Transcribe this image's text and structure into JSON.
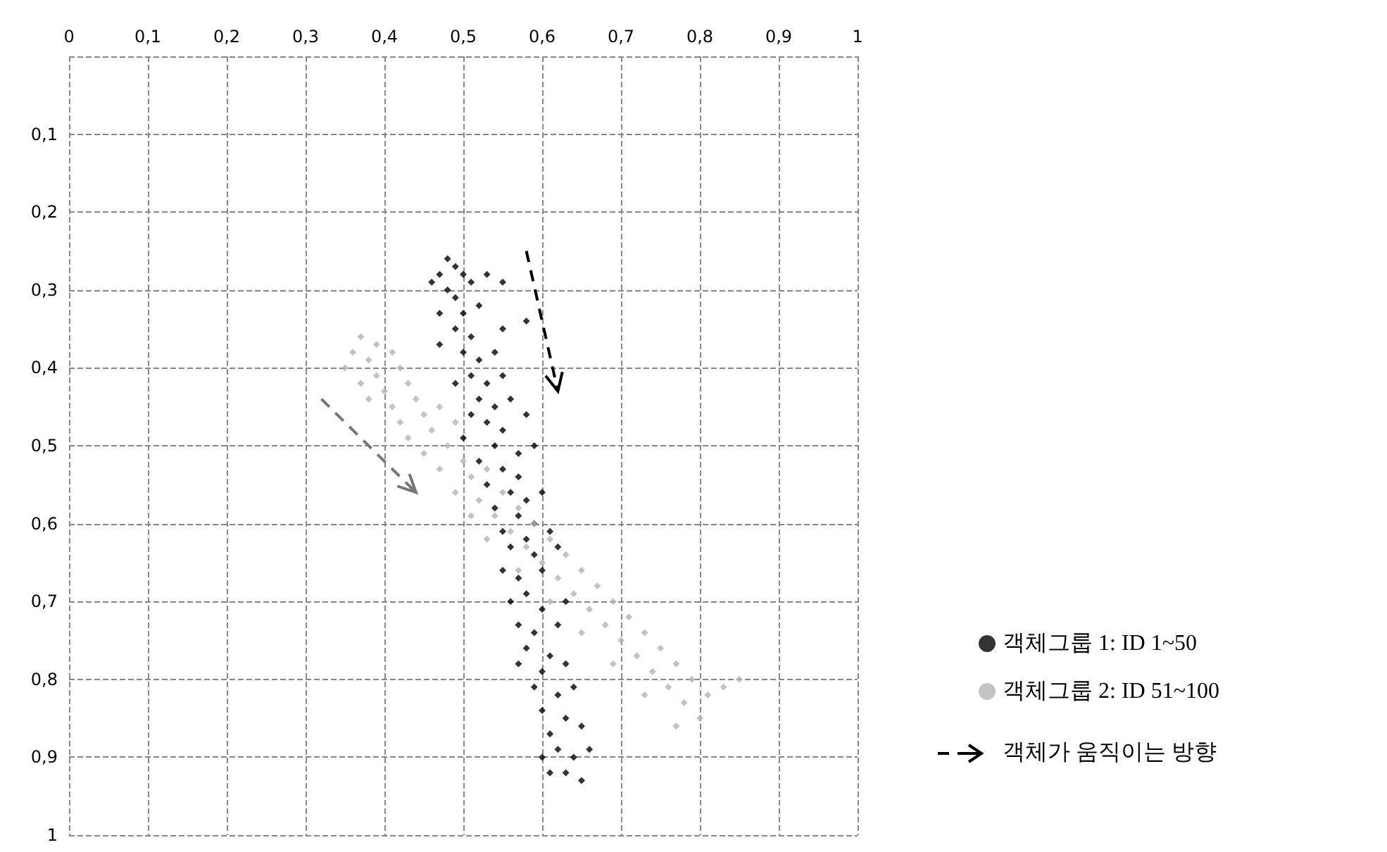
{
  "chart_data": {
    "type": "scatter",
    "marker": "diamond",
    "grid": true,
    "legend": "right",
    "xlim": [
      0,
      1
    ],
    "ylim": [
      1,
      0
    ],
    "xticks": [
      {
        "value": 0,
        "label": "0"
      },
      {
        "value": 0.1,
        "label": "0,1"
      },
      {
        "value": 0.2,
        "label": "0,2"
      },
      {
        "value": 0.3,
        "label": "0,3"
      },
      {
        "value": 0.4,
        "label": "0,4"
      },
      {
        "value": 0.5,
        "label": "0,5"
      },
      {
        "value": 0.6,
        "label": "0,6"
      },
      {
        "value": 0.7,
        "label": "0,7"
      },
      {
        "value": 0.8,
        "label": "0,8"
      },
      {
        "value": 0.9,
        "label": "0,9"
      },
      1
    ],
    "yticks": [
      {
        "value": 0,
        "label": null
      },
      {
        "value": 0.1,
        "label": "0,1"
      },
      {
        "value": 0.2,
        "label": "0,2"
      },
      {
        "value": 0.3,
        "label": "0,3"
      },
      {
        "value": 0.4,
        "label": "0,4"
      },
      {
        "value": 0.5,
        "label": "0,5"
      },
      {
        "value": 0.6,
        "label": "0,6"
      },
      {
        "value": 0.7,
        "label": "0,7"
      },
      {
        "value": 0.8,
        "label": "0,8"
      },
      {
        "value": 0.9,
        "label": "0,9"
      },
      1
    ],
    "annotations": [
      "객체가 움직이는 방향"
    ],
    "series": [
      {
        "name": "객체그룹 1: ID 1~50",
        "color": "#000000",
        "x": [
          0.48,
          0.49,
          0.47,
          0.5,
          0.48,
          0.51,
          0.49,
          0.46,
          0.53,
          0.55,
          0.47,
          0.5,
          0.52,
          0.49,
          0.51,
          0.55,
          0.58,
          0.47,
          0.5,
          0.52,
          0.54,
          0.51,
          0.53,
          0.49,
          0.55,
          0.52,
          0.54,
          0.56,
          0.51,
          0.53,
          0.55,
          0.58,
          0.5,
          0.54,
          0.57,
          0.59,
          0.52,
          0.55,
          0.57,
          0.53,
          0.56,
          0.58,
          0.6,
          0.54,
          0.57,
          0.59,
          0.55,
          0.58,
          0.61,
          0.56,
          0.59,
          0.62,
          0.55,
          0.57,
          0.6,
          0.58,
          0.56,
          0.6,
          0.63,
          0.57,
          0.59,
          0.62,
          0.58,
          0.61,
          0.6,
          0.63,
          0.57,
          0.59,
          0.62,
          0.64,
          0.6,
          0.63,
          0.61,
          0.65,
          0.62,
          0.64,
          0.6,
          0.66,
          0.63,
          0.65,
          0.61
        ],
        "values": [
          0.26,
          0.27,
          0.28,
          0.28,
          0.3,
          0.29,
          0.31,
          0.29,
          0.28,
          0.29,
          0.33,
          0.33,
          0.32,
          0.35,
          0.36,
          0.35,
          0.34,
          0.37,
          0.38,
          0.39,
          0.38,
          0.41,
          0.42,
          0.42,
          0.41,
          0.44,
          0.45,
          0.44,
          0.46,
          0.47,
          0.48,
          0.46,
          0.49,
          0.5,
          0.51,
          0.5,
          0.52,
          0.53,
          0.54,
          0.55,
          0.56,
          0.57,
          0.56,
          0.58,
          0.59,
          0.6,
          0.61,
          0.62,
          0.61,
          0.63,
          0.64,
          0.63,
          0.66,
          0.67,
          0.66,
          0.69,
          0.7,
          0.71,
          0.7,
          0.73,
          0.74,
          0.73,
          0.76,
          0.77,
          0.79,
          0.78,
          0.78,
          0.81,
          0.82,
          0.81,
          0.84,
          0.85,
          0.87,
          0.86,
          0.89,
          0.9,
          0.9,
          0.89,
          0.92,
          0.93,
          0.92
        ]
      },
      {
        "name": "객체그룹 2: ID 51~100",
        "color": "#b4b4b4",
        "x": [
          0.37,
          0.39,
          0.36,
          0.38,
          0.41,
          0.35,
          0.39,
          0.42,
          0.37,
          0.4,
          0.43,
          0.41,
          0.44,
          0.38,
          0.42,
          0.45,
          0.47,
          0.43,
          0.46,
          0.49,
          0.45,
          0.48,
          0.5,
          0.47,
          0.51,
          0.53,
          0.49,
          0.52,
          0.55,
          0.51,
          0.54,
          0.57,
          0.56,
          0.59,
          0.53,
          0.58,
          0.61,
          0.6,
          0.63,
          0.57,
          0.62,
          0.65,
          0.64,
          0.67,
          0.61,
          0.66,
          0.69,
          0.68,
          0.71,
          0.65,
          0.7,
          0.73,
          0.72,
          0.75,
          0.69,
          0.74,
          0.77,
          0.76,
          0.79,
          0.73,
          0.78,
          0.81,
          0.8,
          0.83,
          0.77,
          0.85
        ],
        "values": [
          0.36,
          0.37,
          0.38,
          0.39,
          0.38,
          0.4,
          0.41,
          0.4,
          0.42,
          0.43,
          0.42,
          0.45,
          0.44,
          0.44,
          0.47,
          0.46,
          0.45,
          0.49,
          0.48,
          0.47,
          0.51,
          0.5,
          0.52,
          0.53,
          0.54,
          0.53,
          0.56,
          0.57,
          0.56,
          0.59,
          0.59,
          0.58,
          0.61,
          0.6,
          0.62,
          0.63,
          0.62,
          0.65,
          0.64,
          0.66,
          0.67,
          0.66,
          0.69,
          0.68,
          0.7,
          0.71,
          0.7,
          0.73,
          0.72,
          0.74,
          0.75,
          0.74,
          0.77,
          0.76,
          0.78,
          0.79,
          0.78,
          0.81,
          0.8,
          0.82,
          0.83,
          0.82,
          0.85,
          0.81,
          0.86,
          0.8
        ]
      }
    ]
  }
}
